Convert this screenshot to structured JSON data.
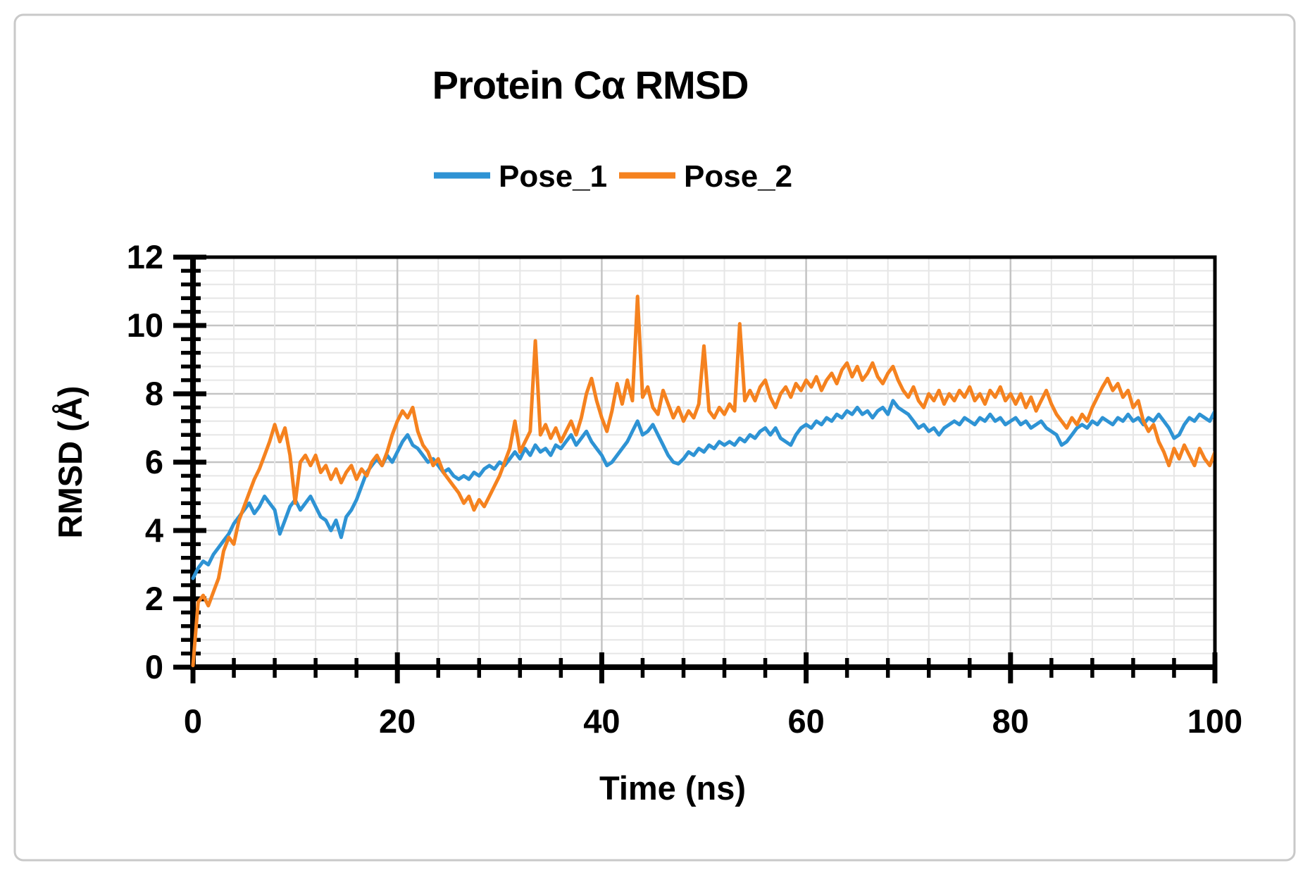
{
  "figure": {
    "background": "#FFFFFF",
    "border_color": "#C9C9C9"
  },
  "styles": {
    "axis_color": "#000000",
    "plot_border_color": "#000000",
    "grid_minor_color": "#E6E6E6",
    "grid_major_color": "#C4C4C4",
    "text_color": "#000000",
    "plot_background": "#FFFFFF"
  },
  "chart_data": {
    "type": "line",
    "title": "Protein Cα RMSD",
    "xlabel": "Time (ns)",
    "ylabel": "RMSD (Å)",
    "xlim": [
      0,
      100
    ],
    "ylim": [
      0,
      12
    ],
    "x_major_ticks": [
      0,
      20,
      40,
      60,
      80,
      100
    ],
    "y_major_ticks": [
      0,
      2,
      4,
      6,
      8,
      10,
      12
    ],
    "x_minor_step": 4,
    "y_minor_step": 0.4,
    "grid": "minor and major gridlines on, plot area boxed",
    "legend_position": "top-center",
    "x_start": 0,
    "x_step": 0.5,
    "series": [
      {
        "name": "Pose_1",
        "color": "#2E93D4",
        "values": [
          2.6,
          2.9,
          3.1,
          3.0,
          3.3,
          3.5,
          3.7,
          3.9,
          4.2,
          4.4,
          4.6,
          4.8,
          4.5,
          4.7,
          5.0,
          4.8,
          4.6,
          3.9,
          4.3,
          4.7,
          4.9,
          4.6,
          4.8,
          5.0,
          4.7,
          4.4,
          4.3,
          4.0,
          4.3,
          3.8,
          4.4,
          4.6,
          4.9,
          5.3,
          5.7,
          5.9,
          6.1,
          5.9,
          6.2,
          6.0,
          6.3,
          6.6,
          6.8,
          6.5,
          6.4,
          6.2,
          6.0,
          6.1,
          5.9,
          5.7,
          5.8,
          5.6,
          5.5,
          5.6,
          5.5,
          5.7,
          5.6,
          5.8,
          5.9,
          5.8,
          6.0,
          5.9,
          6.1,
          6.3,
          6.1,
          6.4,
          6.2,
          6.5,
          6.3,
          6.4,
          6.2,
          6.5,
          6.4,
          6.6,
          6.8,
          6.5,
          6.7,
          6.9,
          6.6,
          6.4,
          6.2,
          5.9,
          6.0,
          6.2,
          6.4,
          6.6,
          6.9,
          7.2,
          6.8,
          6.9,
          7.1,
          6.8,
          6.5,
          6.2,
          6.0,
          5.95,
          6.1,
          6.3,
          6.2,
          6.4,
          6.3,
          6.5,
          6.4,
          6.6,
          6.5,
          6.6,
          6.5,
          6.7,
          6.6,
          6.8,
          6.7,
          6.9,
          7.0,
          6.8,
          7.0,
          6.7,
          6.6,
          6.5,
          6.8,
          7.0,
          7.1,
          7.0,
          7.2,
          7.1,
          7.3,
          7.2,
          7.4,
          7.3,
          7.5,
          7.4,
          7.6,
          7.4,
          7.5,
          7.3,
          7.5,
          7.6,
          7.4,
          7.8,
          7.6,
          7.5,
          7.4,
          7.2,
          7.0,
          7.1,
          6.9,
          7.0,
          6.8,
          7.0,
          7.1,
          7.2,
          7.1,
          7.3,
          7.2,
          7.1,
          7.3,
          7.2,
          7.4,
          7.2,
          7.3,
          7.1,
          7.2,
          7.3,
          7.1,
          7.2,
          7.0,
          7.1,
          7.2,
          7.0,
          6.9,
          6.8,
          6.5,
          6.6,
          6.8,
          7.0,
          7.1,
          7.0,
          7.2,
          7.1,
          7.3,
          7.2,
          7.1,
          7.3,
          7.2,
          7.4,
          7.2,
          7.3,
          7.1,
          7.3,
          7.2,
          7.4,
          7.2,
          7.0,
          6.7,
          6.8,
          7.1,
          7.3,
          7.2,
          7.4,
          7.3,
          7.2,
          7.5
        ]
      },
      {
        "name": "Pose_2",
        "color": "#F5821F",
        "values": [
          0.05,
          1.9,
          2.1,
          1.8,
          2.2,
          2.6,
          3.4,
          3.8,
          3.6,
          4.3,
          4.7,
          5.1,
          5.5,
          5.8,
          6.2,
          6.6,
          7.1,
          6.6,
          7.0,
          6.2,
          4.8,
          6.0,
          6.2,
          5.9,
          6.2,
          5.7,
          5.9,
          5.5,
          5.8,
          5.4,
          5.7,
          5.9,
          5.5,
          5.8,
          5.6,
          6.0,
          6.2,
          5.9,
          6.3,
          6.8,
          7.2,
          7.5,
          7.3,
          7.6,
          6.9,
          6.5,
          6.3,
          5.9,
          6.1,
          5.7,
          5.5,
          5.3,
          5.1,
          4.8,
          5.0,
          4.6,
          4.9,
          4.7,
          5.0,
          5.3,
          5.6,
          6.0,
          6.4,
          7.2,
          6.3,
          6.6,
          6.9,
          9.55,
          6.8,
          7.1,
          6.7,
          7.0,
          6.6,
          6.9,
          7.2,
          6.8,
          7.3,
          8.0,
          8.45,
          7.8,
          7.3,
          6.9,
          7.5,
          8.3,
          7.7,
          8.4,
          7.8,
          10.85,
          7.9,
          8.2,
          7.6,
          7.4,
          8.1,
          7.7,
          7.3,
          7.6,
          7.2,
          7.5,
          7.3,
          7.7,
          9.4,
          7.5,
          7.3,
          7.6,
          7.4,
          7.7,
          7.5,
          10.05,
          7.8,
          8.1,
          7.8,
          8.2,
          8.4,
          7.9,
          7.6,
          8.0,
          8.2,
          7.9,
          8.3,
          8.1,
          8.4,
          8.2,
          8.5,
          8.1,
          8.4,
          8.6,
          8.3,
          8.7,
          8.9,
          8.5,
          8.8,
          8.4,
          8.6,
          8.9,
          8.5,
          8.3,
          8.6,
          8.8,
          8.4,
          8.1,
          7.9,
          8.2,
          7.8,
          7.6,
          8.0,
          7.8,
          8.1,
          7.7,
          8.0,
          7.8,
          8.1,
          7.9,
          8.2,
          7.8,
          8.0,
          7.7,
          8.1,
          7.9,
          8.2,
          7.8,
          8.0,
          7.7,
          8.0,
          7.6,
          7.9,
          7.5,
          7.8,
          8.1,
          7.7,
          7.4,
          7.2,
          7.0,
          7.3,
          7.1,
          7.4,
          7.2,
          7.6,
          7.9,
          8.2,
          8.45,
          8.1,
          8.3,
          7.9,
          8.1,
          7.6,
          7.8,
          7.2,
          6.9,
          7.1,
          6.6,
          6.3,
          5.9,
          6.4,
          6.1,
          6.5,
          6.2,
          5.9,
          6.4,
          6.1,
          5.9,
          6.3
        ]
      }
    ]
  }
}
